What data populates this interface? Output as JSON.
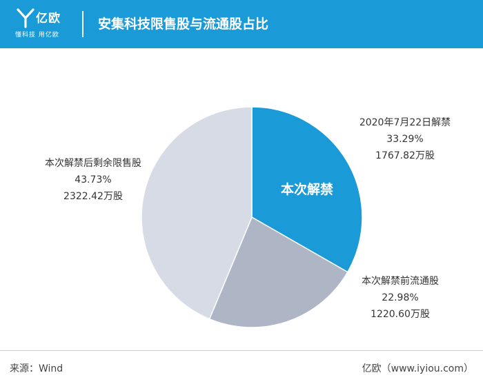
{
  "header": {
    "logo_text": "亿欧",
    "slogan": "懂科技 用亿欧",
    "title": "安集科技限售股与流通股占比"
  },
  "chart_data": {
    "type": "pie",
    "title": "安集科技限售股与流通股占比",
    "highlight_label": "本次解禁",
    "slices": [
      {
        "name": "2020年7月22日解禁",
        "percent_label": "33.29%",
        "amount_label": "1767.82万股",
        "value": 33.29,
        "amount": 1767.82,
        "color": "#1a9ad6"
      },
      {
        "name": "本次解禁前流通股",
        "percent_label": "22.98%",
        "amount_label": "1220.60万股",
        "value": 22.98,
        "amount": 1220.6,
        "color": "#aeb6c5"
      },
      {
        "name": "本次解禁后剩余限售股",
        "percent_label": "43.73%",
        "amount_label": "2322.42万股",
        "value": 43.73,
        "amount": 2322.42,
        "color": "#d6dbe6"
      }
    ]
  },
  "footer": {
    "source": "来源：Wind",
    "credit": "亿欧（www.iyiou.com）"
  },
  "colors": {
    "brand": "#1a9ad6",
    "slice_blue": "#1a9ad6",
    "slice_gray": "#aeb6c5",
    "slice_light": "#d6dbe6"
  }
}
